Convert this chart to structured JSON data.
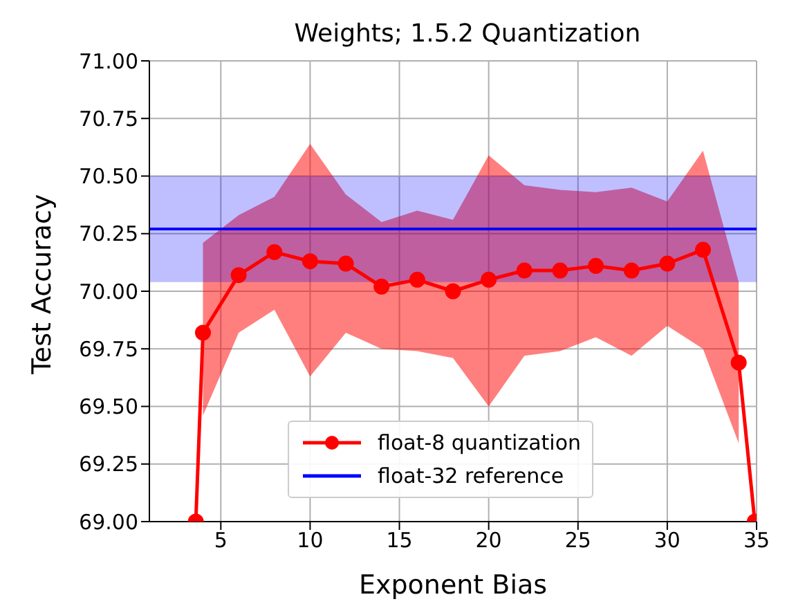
{
  "chart_data": {
    "type": "line",
    "title": "Weights; 1.5.2 Quantization",
    "xlabel": "Exponent Bias",
    "ylabel": "Test Accuracy",
    "xlim": [
      1,
      35
    ],
    "xticks": [
      5,
      10,
      15,
      20,
      25,
      30,
      35
    ],
    "ylim": [
      69,
      71
    ],
    "yticks": [
      {
        "value": 69,
        "label": "69.00"
      },
      {
        "value": 69.25,
        "label": "69.25"
      },
      {
        "value": 69.5,
        "label": "69.50"
      },
      {
        "value": 69.75,
        "label": "69.75"
      },
      {
        "value": 70,
        "label": "70.00"
      },
      {
        "value": 70.25,
        "label": "70.25"
      },
      {
        "value": 70.5,
        "label": "70.50"
      },
      {
        "value": 70.75,
        "label": "70.75"
      },
      {
        "value": 71,
        "label": "71.00"
      }
    ],
    "grid": true,
    "legend": "bottom",
    "marker": "circle",
    "line_style": "solid",
    "series": [
      {
        "name": "float-8 quantization",
        "color": "#ff0000",
        "x": [
          3.6,
          4,
          6,
          8,
          10,
          12,
          14,
          16,
          18,
          20,
          22,
          24,
          26,
          28,
          30,
          32,
          34,
          34.9
        ],
        "values": [
          69,
          69.82,
          70.07,
          70.17,
          70.13,
          70.12,
          70.02,
          70.05,
          70.0,
          70.05,
          70.09,
          70.09,
          70.11,
          70.09,
          70.12,
          70.18,
          69.69,
          69
        ],
        "lower": [
          null,
          69.46,
          69.82,
          69.92,
          69.63,
          69.82,
          69.75,
          69.74,
          69.71,
          69.5,
          69.72,
          69.74,
          69.8,
          69.72,
          69.85,
          69.75,
          69.34,
          null
        ],
        "upper": [
          null,
          70.21,
          70.33,
          70.41,
          70.64,
          70.42,
          70.3,
          70.35,
          70.31,
          70.59,
          70.46,
          70.44,
          70.43,
          70.45,
          70.39,
          70.61,
          70.04,
          null
        ]
      },
      {
        "name": "float-32 reference",
        "color": "#0000ff",
        "type": "line",
        "marker": "none",
        "x": [
          1,
          35
        ],
        "values": [
          70.27,
          70.27
        ],
        "lower": [
          70.04,
          70.04
        ],
        "upper": [
          70.5,
          70.5
        ]
      }
    ]
  }
}
